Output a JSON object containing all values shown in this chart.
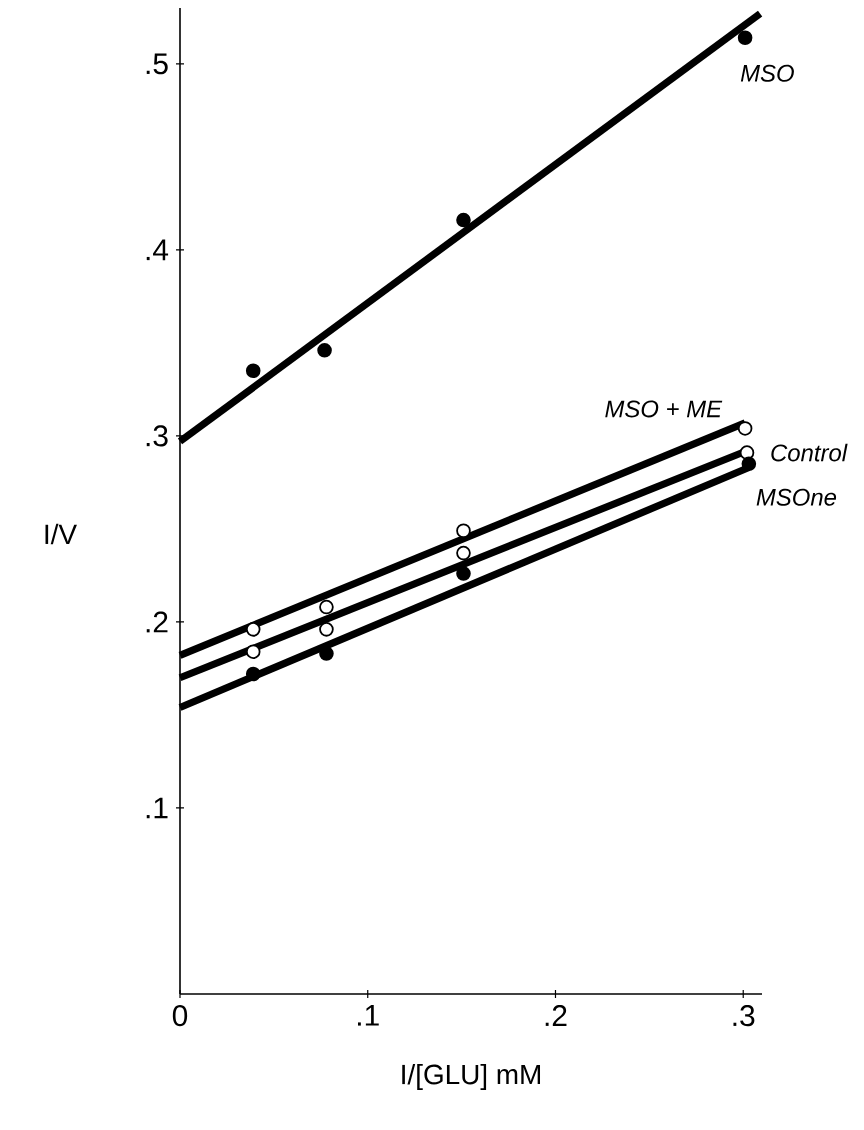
{
  "chart_data": {
    "type": "scatter",
    "xlabel": "I/[GLU] mM",
    "ylabel": "I/V",
    "xlim": [
      0,
      0.31
    ],
    "ylim": [
      0,
      0.53
    ],
    "xticks": [
      0,
      {
        "value": 0.1,
        "label": ".1"
      },
      {
        "value": 0.2,
        "label": ".2"
      },
      {
        "value": 0.3,
        "label": ".3"
      }
    ],
    "yticks": [
      {
        "value": 0.1,
        "label": ".1"
      },
      {
        "value": 0.2,
        "label": ".2"
      },
      {
        "value": 0.3,
        "label": ".3"
      },
      {
        "value": 0.4,
        "label": ".4"
      },
      {
        "value": 0.5,
        "label": ".5"
      }
    ],
    "grid": false,
    "marker": "circle",
    "series": [
      {
        "name": "MSO",
        "color": "#000000",
        "x": [
          0.039,
          0.077,
          0.151,
          0.301
        ],
        "values": [
          0.335,
          0.346,
          0.416,
          0.514
        ]
      },
      {
        "name": "MSO + ME",
        "color": "#ffffff",
        "x": [
          0.039,
          0.078,
          0.151,
          0.301
        ],
        "values": [
          0.196,
          0.208,
          0.249,
          0.304
        ]
      },
      {
        "name": "Control",
        "color": "#ffffff",
        "x": [
          0.039,
          0.078,
          0.151,
          0.302
        ],
        "values": [
          0.184,
          0.196,
          0.237,
          0.291
        ]
      },
      {
        "name": "MSOne",
        "color": "#000000",
        "x": [
          0.039,
          0.078,
          0.151,
          0.303
        ],
        "values": [
          0.172,
          0.183,
          0.226,
          0.285
        ]
      },
      {
        "type": "line",
        "marker": "none",
        "color": "#000000",
        "x": [
          0,
          0.309
        ],
        "values": [
          0.297,
          0.527
        ]
      },
      {
        "type": "line",
        "marker": "none",
        "color": "#000000",
        "x": [
          0,
          0.301
        ],
        "values": [
          0.182,
          0.307
        ]
      },
      {
        "type": "line",
        "marker": "none",
        "color": "#000000",
        "x": [
          0,
          0.302
        ],
        "values": [
          0.17,
          0.292
        ]
      },
      {
        "type": "line",
        "marker": "none",
        "color": "#000000",
        "x": [
          0,
          0.303
        ],
        "values": [
          0.154,
          0.283
        ]
      }
    ]
  }
}
